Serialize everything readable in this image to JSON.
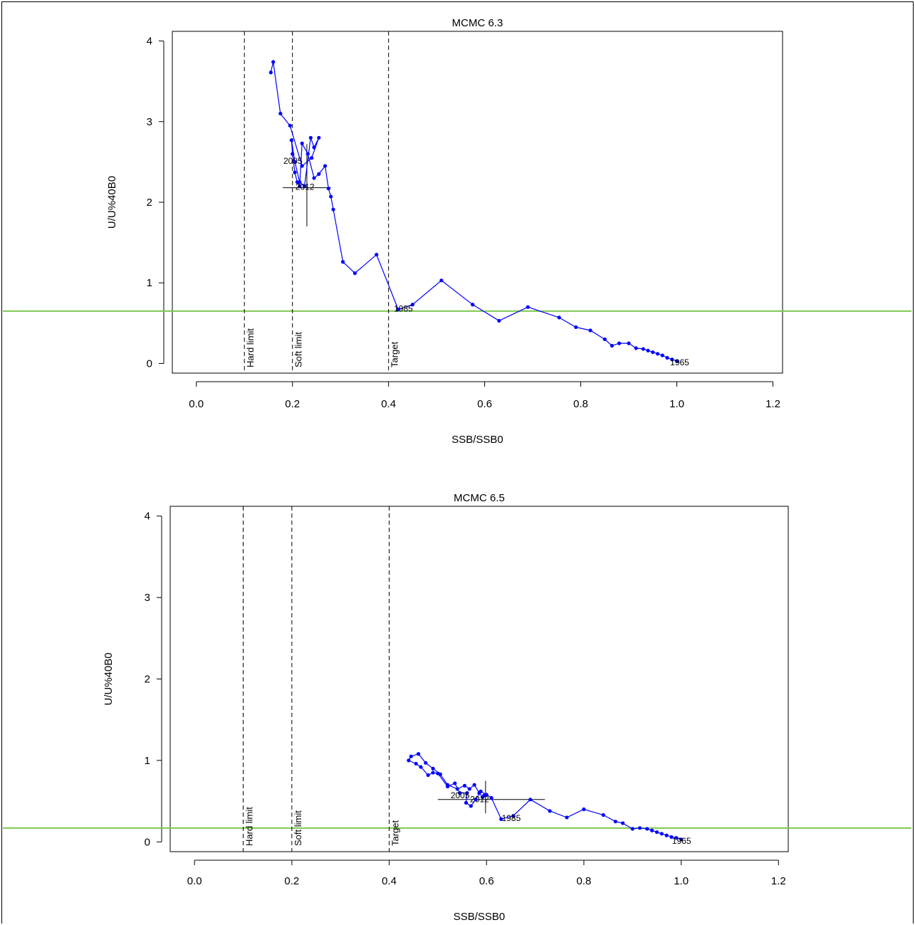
{
  "colors": {
    "series": "#0000ff",
    "reference_line": "#7ec850",
    "axes": "#000000"
  },
  "chart_data": [
    {
      "type": "line",
      "title": "MCMC 6.3",
      "xlabel": "SSB/SSB0",
      "ylabel": "U/U%40B0",
      "xlim": [
        -0.05,
        1.22
      ],
      "ylim": [
        -0.12,
        4.12
      ],
      "x_ticks": [
        0.0,
        0.2,
        0.4,
        0.6,
        0.8,
        1.0,
        1.2
      ],
      "x_tick_labels": [
        "0.0",
        "0.2",
        "0.4",
        "0.6",
        "0.8",
        "1.0",
        "1.2"
      ],
      "y_ticks": [
        0,
        1,
        2,
        3,
        4
      ],
      "y_tick_labels": [
        "0",
        "1",
        "2",
        "3",
        "4"
      ],
      "vlines": [
        {
          "x": 0.1,
          "label": "Hard limit"
        },
        {
          "x": 0.2,
          "label": "Soft limit"
        },
        {
          "x": 0.4,
          "label": "Target"
        }
      ],
      "hline": 0.65,
      "point_labels": [
        {
          "x": 0.995,
          "y": 0.02,
          "text": "1965"
        },
        {
          "x": 0.42,
          "y": 0.69,
          "text": "1985"
        },
        {
          "x": 0.19,
          "y": 2.52,
          "text": "2005"
        },
        {
          "x": 0.215,
          "y": 2.2,
          "text": "2012"
        }
      ],
      "crosshair": {
        "x": 0.23,
        "y": 2.18,
        "x_range": [
          0.18,
          0.28
        ],
        "y_range": [
          1.7,
          2.72
        ]
      },
      "series": [
        {
          "x": [
            1.0,
            0.99,
            0.98,
            0.97,
            0.96,
            0.95,
            0.94,
            0.93,
            0.915,
            0.9,
            0.88,
            0.865,
            0.85,
            0.82,
            0.79,
            0.755,
            0.69,
            0.63,
            0.575,
            0.51,
            0.45,
            0.42,
            0.375,
            0.33,
            0.305,
            0.285,
            0.28,
            0.275,
            0.268,
            0.255,
            0.245,
            0.232,
            0.22,
            0.215,
            0.21,
            0.205,
            0.2,
            0.198,
            0.205,
            0.215,
            0.225,
            0.238,
            0.245,
            0.255,
            0.24,
            0.22,
            0.195,
            0.175,
            0.16,
            0.155
          ],
          "y": [
            0.03,
            0.05,
            0.07,
            0.1,
            0.12,
            0.14,
            0.16,
            0.18,
            0.19,
            0.25,
            0.25,
            0.22,
            0.3,
            0.41,
            0.45,
            0.57,
            0.7,
            0.53,
            0.73,
            1.03,
            0.73,
            0.67,
            1.35,
            1.12,
            1.26,
            1.91,
            2.07,
            2.17,
            2.45,
            2.35,
            2.3,
            2.6,
            2.73,
            2.2,
            2.25,
            2.37,
            2.6,
            2.77,
            2.5,
            2.25,
            2.2,
            2.8,
            2.68,
            2.8,
            2.55,
            2.45,
            2.95,
            3.1,
            3.74,
            3.61
          ]
        }
      ]
    },
    {
      "type": "line",
      "title": "MCMC 6.5",
      "xlabel": "SSB/SSB0",
      "ylabel": "U/U%40B0",
      "xlim": [
        -0.05,
        1.22
      ],
      "ylim": [
        -0.12,
        4.12
      ],
      "x_ticks": [
        0.0,
        0.2,
        0.4,
        0.6,
        0.8,
        1.0,
        1.2
      ],
      "x_tick_labels": [
        "0.0",
        "0.2",
        "0.4",
        "0.6",
        "0.8",
        "1.0",
        "1.2"
      ],
      "y_ticks": [
        0,
        1,
        2,
        3,
        4
      ],
      "y_tick_labels": [
        "0",
        "1",
        "2",
        "3",
        "4"
      ],
      "vlines": [
        {
          "x": 0.1,
          "label": "Hard limit"
        },
        {
          "x": 0.2,
          "label": "Soft limit"
        },
        {
          "x": 0.4,
          "label": "Target"
        }
      ],
      "hline": 0.17,
      "point_labels": [
        {
          "x": 0.99,
          "y": 0.02,
          "text": "1965"
        },
        {
          "x": 0.64,
          "y": 0.3,
          "text": "1985"
        },
        {
          "x": 0.535,
          "y": 0.58,
          "text": "2005"
        },
        {
          "x": 0.575,
          "y": 0.53,
          "text": "2012"
        }
      ],
      "crosshair": {
        "x": 0.598,
        "y": 0.52,
        "x_range": [
          0.5,
          0.72
        ],
        "y_range": [
          0.35,
          0.75
        ]
      },
      "series": [
        {
          "x": [
            1.0,
            0.99,
            0.98,
            0.97,
            0.96,
            0.95,
            0.94,
            0.93,
            0.915,
            0.9,
            0.88,
            0.865,
            0.84,
            0.8,
            0.765,
            0.73,
            0.69,
            0.655,
            0.63,
            0.61,
            0.6,
            0.588,
            0.578,
            0.568,
            0.558,
            0.56,
            0.545,
            0.535,
            0.52,
            0.5,
            0.49,
            0.48,
            0.465,
            0.455,
            0.44,
            0.445,
            0.46,
            0.475,
            0.49,
            0.505,
            0.52,
            0.54,
            0.555,
            0.565,
            0.575,
            0.585,
            0.592,
            0.595
          ],
          "y": [
            0.03,
            0.05,
            0.06,
            0.08,
            0.1,
            0.12,
            0.14,
            0.16,
            0.17,
            0.16,
            0.23,
            0.25,
            0.33,
            0.4,
            0.3,
            0.38,
            0.52,
            0.32,
            0.28,
            0.54,
            0.58,
            0.62,
            0.52,
            0.44,
            0.48,
            0.6,
            0.6,
            0.72,
            0.68,
            0.84,
            0.85,
            0.82,
            0.92,
            0.96,
            1.0,
            1.05,
            1.08,
            0.97,
            0.9,
            0.83,
            0.7,
            0.65,
            0.69,
            0.65,
            0.7,
            0.6,
            0.55,
            0.57
          ]
        }
      ]
    }
  ]
}
